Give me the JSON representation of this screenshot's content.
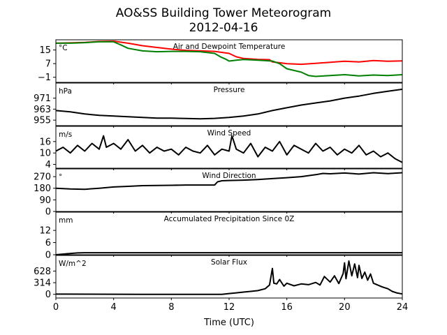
{
  "figure": {
    "title_line1": "AO&SS Building Tower Meteorogram",
    "title_line2": "2012-04-16",
    "xlabel": "Time (UTC)"
  },
  "chart_data": [
    {
      "id": "temp",
      "type": "line",
      "title": "Air and Dewpoint Temperature",
      "unit": "°C",
      "ylim": [
        -4,
        21
      ],
      "yticks": [
        -1,
        7,
        15
      ],
      "ytick_labels": [
        "−1",
        "7",
        "15"
      ],
      "xlim": [
        0,
        24
      ],
      "xticks": [
        0,
        4,
        8,
        12,
        16,
        20,
        24
      ],
      "series": [
        {
          "color": "#ff0000",
          "x": [
            0,
            1,
            2,
            3,
            4,
            5,
            6,
            7,
            8,
            9,
            10,
            11,
            12,
            12.5,
            13,
            14,
            14.8,
            15,
            15.5,
            16,
            17,
            18,
            19,
            20,
            21,
            22,
            23,
            24
          ],
          "y": [
            19,
            19.2,
            19.5,
            20,
            20.2,
            19,
            17.5,
            16.5,
            15.5,
            14.8,
            14.5,
            14.2,
            13,
            11,
            10,
            9.5,
            9.3,
            8,
            7.5,
            7,
            6.6,
            7.2,
            7.8,
            8.4,
            8,
            8.8,
            8.4,
            8.6
          ]
        },
        {
          "color": "#008000",
          "x": [
            0,
            1,
            2,
            3,
            4,
            4.5,
            5,
            6,
            7,
            8,
            9,
            10,
            11,
            11.4,
            11.8,
            12,
            12.5,
            13,
            14,
            15,
            15.5,
            16,
            17,
            17.5,
            18,
            19,
            20,
            21,
            22,
            23,
            24
          ],
          "y": [
            19,
            19,
            19.3,
            19.8,
            19.8,
            18,
            16,
            14.5,
            14,
            14.2,
            14.2,
            14,
            13,
            11,
            9.5,
            8.5,
            9,
            9.4,
            9,
            8.5,
            7,
            4,
            2,
            0,
            -0.5,
            0,
            0.5,
            -0.2,
            0.3,
            0,
            0.5
          ]
        }
      ]
    },
    {
      "id": "pressure",
      "type": "line",
      "title": "Pressure",
      "unit": "hPa",
      "ylim": [
        951,
        982
      ],
      "yticks": [
        955,
        963,
        971
      ],
      "ytick_labels": [
        "955",
        "963",
        "971"
      ],
      "xlim": [
        0,
        24
      ],
      "series": [
        {
          "color": "#000000",
          "x": [
            0,
            1,
            2,
            3,
            4,
            5,
            6,
            7,
            8,
            9,
            10,
            11,
            12,
            13,
            14,
            15,
            16,
            17,
            18,
            19,
            20,
            21,
            22,
            23,
            24
          ],
          "y": [
            962,
            961,
            959.5,
            958.5,
            958,
            957.5,
            957,
            956.5,
            956.5,
            956.2,
            956,
            956.3,
            957,
            958,
            959.5,
            962,
            964,
            966,
            967.5,
            969,
            971,
            972.5,
            974.5,
            976,
            977.5
          ]
        }
      ]
    },
    {
      "id": "wind_speed",
      "type": "line",
      "title": "Wind Speed",
      "unit": "m/s",
      "ylim": [
        2,
        24
      ],
      "yticks": [
        4,
        10,
        16
      ],
      "ytick_labels": [
        "4",
        "10",
        "16"
      ],
      "xlim": [
        0,
        24
      ],
      "series": [
        {
          "color": "#000000",
          "x": [
            0,
            0.5,
            1,
            1.5,
            2,
            2.5,
            3,
            3.3,
            3.5,
            4,
            4.5,
            5,
            5.5,
            6,
            6.5,
            7,
            7.5,
            8,
            8.5,
            9,
            9.5,
            10,
            10.5,
            11,
            11.5,
            12,
            12.2,
            12.5,
            13,
            13.5,
            14,
            14.5,
            15,
            15.5,
            16,
            16.5,
            17,
            17.5,
            18,
            18.5,
            19,
            19.5,
            20,
            20.5,
            21,
            21.5,
            22,
            22.5,
            23,
            23.5,
            24
          ],
          "y": [
            11,
            13,
            10,
            14,
            11,
            15,
            12,
            19,
            13,
            15,
            12,
            17,
            11,
            14,
            10,
            13,
            11,
            12,
            9,
            13,
            11,
            10,
            14,
            9,
            12,
            11,
            19,
            12,
            10,
            15,
            8,
            13,
            11,
            16,
            9,
            14,
            12,
            10,
            15,
            11,
            13,
            9,
            12,
            10,
            14,
            9,
            11,
            8,
            10,
            7,
            5
          ]
        }
      ]
    },
    {
      "id": "wind_direction",
      "type": "line",
      "title": "Wind Direction",
      "unit": "°",
      "ylim": [
        0,
        330
      ],
      "yticks": [
        0,
        90,
        180,
        270
      ],
      "ytick_labels": [
        "0",
        "90",
        "180",
        "270"
      ],
      "xlim": [
        0,
        24
      ],
      "series": [
        {
          "color": "#000000",
          "x": [
            0,
            1,
            2,
            3,
            4,
            5,
            6,
            7,
            8,
            9,
            10,
            11,
            11.2,
            11.5,
            12,
            13,
            14,
            15,
            16,
            17,
            18,
            18.5,
            19,
            20,
            21,
            22,
            23,
            24
          ],
          "y": [
            180,
            175,
            172,
            180,
            190,
            195,
            200,
            202,
            203,
            205,
            205,
            205,
            230,
            238,
            240,
            243,
            248,
            255,
            262,
            270,
            285,
            295,
            292,
            298,
            290,
            300,
            293,
            300
          ]
        }
      ]
    },
    {
      "id": "precip",
      "type": "line",
      "title": "Accumulated Precipitation Since 0Z",
      "unit": "mm",
      "ylim": [
        0,
        21
      ],
      "yticks": [
        0,
        6,
        12
      ],
      "ytick_labels": [
        "0",
        "6",
        "12"
      ],
      "xlim": [
        0,
        24
      ],
      "series": [
        {
          "color": "#000000",
          "x": [
            0,
            0.8,
            1.5,
            2,
            24
          ],
          "y": [
            0,
            0.5,
            0.9,
            1,
            1
          ]
        }
      ]
    },
    {
      "id": "solar",
      "type": "line",
      "title": "Solar Flux",
      "unit": "W/m^2",
      "ylim": [
        -100,
        1050
      ],
      "yticks": [
        0,
        314,
        628
      ],
      "ytick_labels": [
        "0",
        "314",
        "628"
      ],
      "xlim": [
        0,
        24
      ],
      "xtick_labels": [
        "0",
        "4",
        "8",
        "12",
        "16",
        "20",
        "24"
      ],
      "series": [
        {
          "color": "#000000",
          "x": [
            0,
            6,
            11.5,
            12,
            12.5,
            13,
            13.5,
            14,
            14.5,
            14.8,
            15,
            15.1,
            15.3,
            15.5,
            15.8,
            16,
            16.5,
            17,
            17.5,
            18,
            18.3,
            18.6,
            19,
            19.3,
            19.6,
            19.9,
            20,
            20.1,
            20.3,
            20.5,
            20.7,
            20.9,
            21,
            21.2,
            21.4,
            21.6,
            21.8,
            22,
            22.3,
            22.6,
            23,
            23.3,
            23.6,
            24
          ],
          "y": [
            5,
            0,
            0,
            20,
            40,
            60,
            80,
            100,
            150,
            250,
            700,
            300,
            280,
            400,
            220,
            300,
            230,
            280,
            260,
            320,
            250,
            480,
            330,
            500,
            290,
            560,
            850,
            420,
            900,
            500,
            820,
            450,
            780,
            430,
            600,
            380,
            550,
            300,
            250,
            200,
            150,
            80,
            40,
            10
          ]
        }
      ]
    }
  ]
}
